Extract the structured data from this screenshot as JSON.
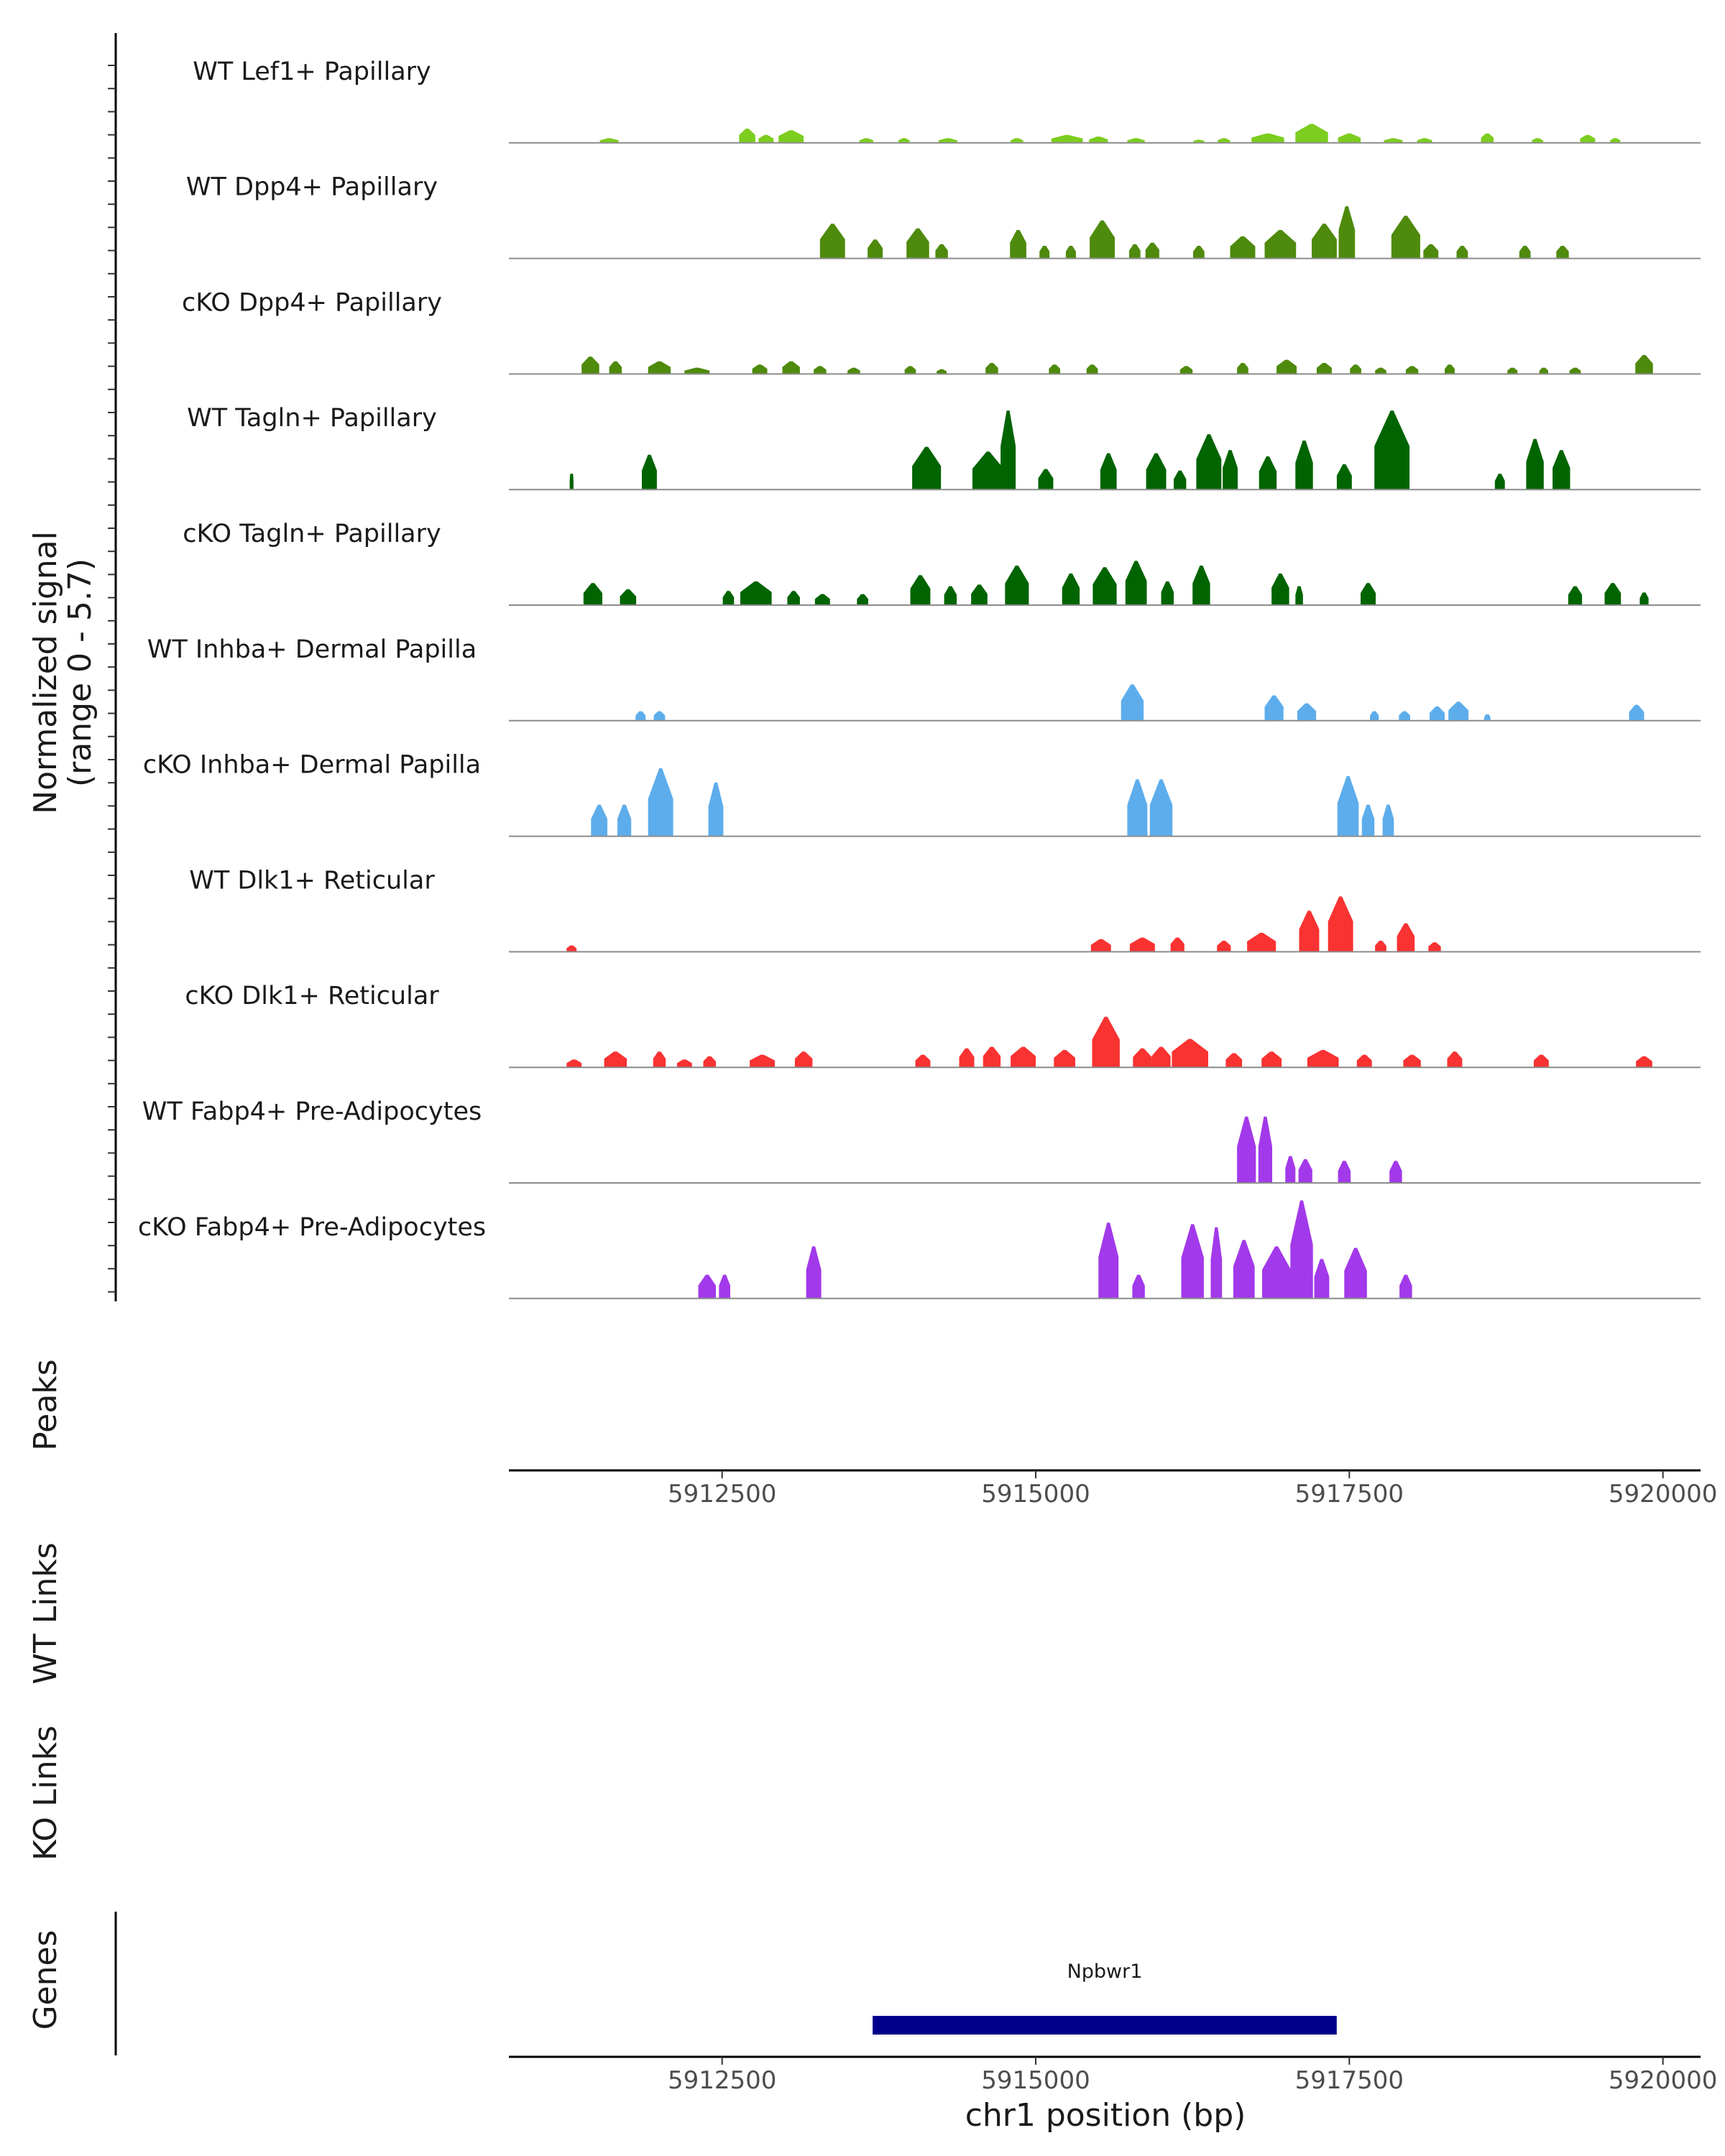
{
  "chart_data": {
    "type": "area",
    "title": "",
    "xlabel": "chr1 position (bp)",
    "ylabel": "Normalized signal\n(range 0 - 5.7)",
    "ylabel_lines": [
      "Normalized signal",
      "(range 0 - 5.7)"
    ],
    "ylim": [
      0,
      5.7
    ],
    "xlim": [
      5910800,
      5920300
    ],
    "x_ticks": [
      5912500,
      5915000,
      5917500,
      5920000
    ],
    "x_tick_labels": [
      "5912500",
      "5915000",
      "5917500",
      "5920000"
    ],
    "series": [
      {
        "name": "WT Lef1+ Papillary",
        "color": "#7CCD1F",
        "peaks": [
          [
            5911600,
            150,
            0.3
          ],
          [
            5912700,
            130,
            0.9
          ],
          [
            5912850,
            120,
            0.5
          ],
          [
            5913050,
            200,
            0.8
          ],
          [
            5913650,
            110,
            0.3
          ],
          [
            5913950,
            90,
            0.3
          ],
          [
            5914300,
            150,
            0.3
          ],
          [
            5914850,
            100,
            0.3
          ],
          [
            5915250,
            250,
            0.5
          ],
          [
            5915500,
            150,
            0.4
          ],
          [
            5915800,
            140,
            0.3
          ],
          [
            5916300,
            90,
            0.2
          ],
          [
            5916500,
            100,
            0.3
          ],
          [
            5916850,
            260,
            0.6
          ],
          [
            5917200,
            260,
            1.2
          ],
          [
            5917500,
            180,
            0.6
          ],
          [
            5917850,
            150,
            0.3
          ],
          [
            5918100,
            120,
            0.3
          ],
          [
            5918600,
            100,
            0.6
          ],
          [
            5919000,
            90,
            0.3
          ],
          [
            5919400,
            120,
            0.5
          ],
          [
            5919620,
            80,
            0.3
          ]
        ]
      },
      {
        "name": "WT Dpp4+ Papillary",
        "color": "#4E8A0C",
        "peaks": [
          [
            5913380,
            200,
            2.2
          ],
          [
            5913720,
            120,
            1.2
          ],
          [
            5914060,
            180,
            1.9
          ],
          [
            5914250,
            100,
            0.9
          ],
          [
            5914860,
            130,
            1.8
          ],
          [
            5915070,
            80,
            0.8
          ],
          [
            5915280,
            80,
            0.8
          ],
          [
            5915530,
            200,
            2.4
          ],
          [
            5915790,
            90,
            0.9
          ],
          [
            5915930,
            110,
            1.0
          ],
          [
            5916300,
            90,
            0.8
          ],
          [
            5916650,
            200,
            1.4
          ],
          [
            5916950,
            250,
            1.8
          ],
          [
            5917300,
            200,
            2.2
          ],
          [
            5917480,
            130,
            3.3
          ],
          [
            5917950,
            230,
            2.7
          ],
          [
            5918150,
            120,
            0.9
          ],
          [
            5918400,
            90,
            0.8
          ],
          [
            5918900,
            90,
            0.8
          ],
          [
            5919200,
            100,
            0.8
          ]
        ]
      },
      {
        "name": "cKO Dpp4+ Papillary",
        "color": "#4E8A0C",
        "peaks": [
          [
            5911450,
            140,
            1.1
          ],
          [
            5911650,
            100,
            0.8
          ],
          [
            5912000,
            180,
            0.8
          ],
          [
            5912300,
            200,
            0.4
          ],
          [
            5912800,
            120,
            0.6
          ],
          [
            5913050,
            140,
            0.8
          ],
          [
            5913280,
            100,
            0.5
          ],
          [
            5913550,
            100,
            0.4
          ],
          [
            5914000,
            90,
            0.5
          ],
          [
            5914250,
            80,
            0.3
          ],
          [
            5914650,
            100,
            0.7
          ],
          [
            5915150,
            90,
            0.6
          ],
          [
            5915450,
            90,
            0.6
          ],
          [
            5916200,
            100,
            0.5
          ],
          [
            5916650,
            90,
            0.7
          ],
          [
            5917000,
            160,
            0.9
          ],
          [
            5917300,
            120,
            0.7
          ],
          [
            5917550,
            90,
            0.6
          ],
          [
            5917750,
            90,
            0.4
          ],
          [
            5918000,
            100,
            0.5
          ],
          [
            5918300,
            80,
            0.6
          ],
          [
            5918800,
            80,
            0.4
          ],
          [
            5919050,
            70,
            0.4
          ],
          [
            5919300,
            90,
            0.4
          ],
          [
            5919850,
            140,
            1.2
          ]
        ]
      },
      {
        "name": "WT Tagln+ Papillary",
        "color": "#006400",
        "peaks": [
          [
            5911300,
            30,
            1.0
          ],
          [
            5911920,
            120,
            2.2
          ],
          [
            5914130,
            230,
            2.7
          ],
          [
            5914620,
            250,
            2.4
          ],
          [
            5914780,
            120,
            5.0
          ],
          [
            5915080,
            120,
            1.3
          ],
          [
            5915580,
            130,
            2.3
          ],
          [
            5915960,
            160,
            2.3
          ],
          [
            5916150,
            100,
            1.2
          ],
          [
            5916380,
            200,
            3.5
          ],
          [
            5916550,
            120,
            2.5
          ],
          [
            5916850,
            140,
            2.1
          ],
          [
            5917140,
            140,
            3.1
          ],
          [
            5917460,
            120,
            1.6
          ],
          [
            5917840,
            280,
            5.0
          ],
          [
            5918700,
            80,
            1.0
          ],
          [
            5918980,
            140,
            3.2
          ],
          [
            5919190,
            140,
            2.5
          ]
        ]
      },
      {
        "name": "cKO Tagln+ Papillary",
        "color": "#006400",
        "peaks": [
          [
            5911470,
            150,
            1.4
          ],
          [
            5911750,
            130,
            1.0
          ],
          [
            5912550,
            90,
            0.9
          ],
          [
            5912770,
            250,
            1.5
          ],
          [
            5913070,
            100,
            0.9
          ],
          [
            5913300,
            120,
            0.7
          ],
          [
            5913620,
            90,
            0.7
          ],
          [
            5914080,
            160,
            1.9
          ],
          [
            5914320,
            100,
            1.2
          ],
          [
            5914550,
            130,
            1.3
          ],
          [
            5914850,
            190,
            2.5
          ],
          [
            5915280,
            140,
            2.0
          ],
          [
            5915550,
            190,
            2.4
          ],
          [
            5915800,
            170,
            2.8
          ],
          [
            5916050,
            100,
            1.5
          ],
          [
            5916320,
            140,
            2.5
          ],
          [
            5916950,
            140,
            2.0
          ],
          [
            5917100,
            60,
            1.2
          ],
          [
            5917650,
            120,
            1.4
          ],
          [
            5919300,
            110,
            1.2
          ],
          [
            5919600,
            130,
            1.4
          ],
          [
            5919850,
            70,
            0.8
          ]
        ]
      },
      {
        "name": "WT Inhba+ Dermal Papilla",
        "color": "#5DADEC",
        "peaks": [
          [
            5911850,
            80,
            0.6
          ],
          [
            5912000,
            90,
            0.6
          ],
          [
            5915770,
            180,
            2.3
          ],
          [
            5916900,
            150,
            1.6
          ],
          [
            5917160,
            150,
            1.1
          ],
          [
            5917700,
            70,
            0.6
          ],
          [
            5917940,
            90,
            0.6
          ],
          [
            5918200,
            120,
            0.9
          ],
          [
            5918370,
            160,
            1.2
          ],
          [
            5918600,
            50,
            0.4
          ],
          [
            5919790,
            120,
            1.0
          ]
        ]
      },
      {
        "name": "cKO Inhba+ Dermal Papilla",
        "color": "#5DADEC",
        "peaks": [
          [
            5911520,
            130,
            2.0
          ],
          [
            5911720,
            110,
            2.0
          ],
          [
            5912010,
            200,
            4.3
          ],
          [
            5912450,
            120,
            3.4
          ],
          [
            5915810,
            160,
            3.6
          ],
          [
            5916000,
            180,
            3.6
          ],
          [
            5917490,
            170,
            3.8
          ],
          [
            5917650,
            100,
            2.0
          ],
          [
            5917810,
            90,
            2.0
          ]
        ]
      },
      {
        "name": "WT Dlk1+ Reticular",
        "color": "#F93232",
        "peaks": [
          [
            5911300,
            80,
            0.4
          ],
          [
            5915520,
            160,
            0.8
          ],
          [
            5915850,
            200,
            0.9
          ],
          [
            5916130,
            110,
            0.9
          ],
          [
            5916500,
            110,
            0.7
          ],
          [
            5916800,
            230,
            1.2
          ],
          [
            5917180,
            160,
            2.6
          ],
          [
            5917430,
            200,
            3.5
          ],
          [
            5917750,
            90,
            0.7
          ],
          [
            5917950,
            140,
            1.8
          ],
          [
            5918180,
            100,
            0.6
          ]
        ]
      },
      {
        "name": "cKO Dlk1+ Reticular",
        "color": "#F93232",
        "peaks": [
          [
            5911320,
            120,
            0.5
          ],
          [
            5911650,
            180,
            1.0
          ],
          [
            5912000,
            100,
            1.0
          ],
          [
            5912200,
            120,
            0.5
          ],
          [
            5912400,
            100,
            0.7
          ],
          [
            5912820,
            200,
            0.8
          ],
          [
            5913150,
            140,
            1.0
          ],
          [
            5914100,
            120,
            0.8
          ],
          [
            5914450,
            120,
            1.2
          ],
          [
            5914650,
            140,
            1.3
          ],
          [
            5914900,
            200,
            1.3
          ],
          [
            5915230,
            170,
            1.1
          ],
          [
            5915560,
            220,
            3.2
          ],
          [
            5915850,
            150,
            1.2
          ],
          [
            5916000,
            150,
            1.3
          ],
          [
            5916230,
            290,
            1.8
          ],
          [
            5916580,
            130,
            0.9
          ],
          [
            5916880,
            160,
            1.0
          ],
          [
            5917290,
            250,
            1.1
          ],
          [
            5917620,
            120,
            0.8
          ],
          [
            5918000,
            140,
            0.8
          ],
          [
            5918340,
            120,
            1.0
          ],
          [
            5919030,
            120,
            0.8
          ],
          [
            5919850,
            130,
            0.7
          ]
        ]
      },
      {
        "name": "WT Fabp4+ Pre-Adipocytes",
        "color": "#A239EA",
        "peaks": [
          [
            5916680,
            150,
            4.2
          ],
          [
            5916830,
            110,
            4.2
          ],
          [
            5917030,
            80,
            1.7
          ],
          [
            5917150,
            110,
            1.5
          ],
          [
            5917460,
            100,
            1.4
          ],
          [
            5917870,
            100,
            1.4
          ]
        ]
      },
      {
        "name": "cKO Fabp4+ Pre-Adipocytes",
        "color": "#A239EA",
        "peaks": [
          [
            5912380,
            140,
            1.5
          ],
          [
            5912520,
            90,
            1.5
          ],
          [
            5913230,
            120,
            3.3
          ],
          [
            5915580,
            160,
            4.8
          ],
          [
            5915820,
            100,
            1.5
          ],
          [
            5916250,
            180,
            4.7
          ],
          [
            5916440,
            90,
            4.5
          ],
          [
            5916660,
            170,
            3.7
          ],
          [
            5916920,
            230,
            3.3
          ],
          [
            5917120,
            180,
            6.2
          ],
          [
            5917280,
            120,
            2.5
          ],
          [
            5917550,
            180,
            3.2
          ],
          [
            5917950,
            100,
            1.5
          ]
        ]
      }
    ]
  },
  "panels": {
    "peaks": "Peaks",
    "wt_links": "WT Links",
    "ko_links": "KO Links",
    "genes": "Genes"
  },
  "gene": {
    "name": "Npbwr1",
    "start": 5913700,
    "end": 5917400,
    "color": "#00008B"
  }
}
